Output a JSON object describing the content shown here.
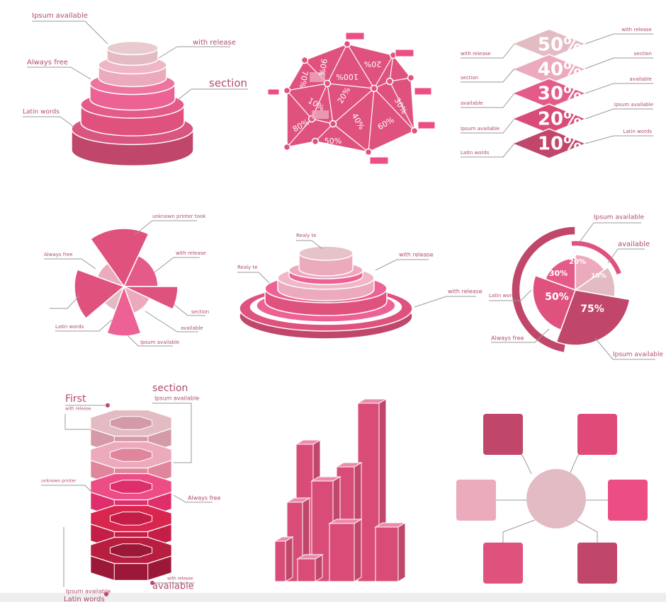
{
  "panels": [
    {
      "labels": [
        "Ipsum available",
        "with release",
        "Always free",
        "section",
        "Latin words"
      ]
    },
    {
      "percents": [
        "100%",
        "20%",
        "70%",
        "90%",
        "20%",
        "10%",
        "40%",
        "30%",
        "80%",
        "60%",
        "50%"
      ]
    },
    {
      "percents": [
        "50%",
        "40%",
        "30%",
        "20%",
        "10%"
      ],
      "labels": [
        "with release",
        "section",
        "available",
        "Ipsum available",
        "Latin words",
        "with release",
        "section",
        "available",
        "Ipsum available",
        "Latin words"
      ]
    },
    {
      "labels": [
        "unknown printer took",
        "with release",
        "Always free",
        "section",
        "available",
        "Latin words",
        "Ipsum available"
      ]
    },
    {
      "labels": [
        "Realy te",
        "Realy te",
        "with release",
        "with release"
      ]
    },
    {
      "labels": [
        "Ipsum available",
        "available",
        "Latin words",
        "Always free",
        "Ipsum available"
      ],
      "percents": [
        "20%",
        "30%",
        "10%",
        "50%",
        "75%"
      ]
    },
    {
      "labels": [
        "First",
        "with release",
        "section",
        "Ipsum available",
        "unknown printer",
        "Always free",
        "with release",
        "available",
        "Ipsum available",
        "Latin words"
      ]
    }
  ]
}
